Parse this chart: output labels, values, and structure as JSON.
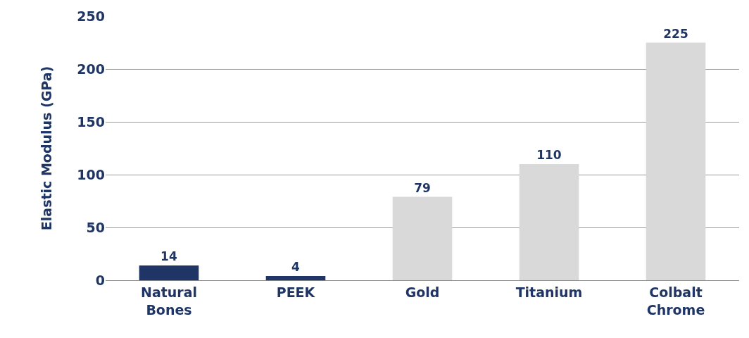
{
  "chart_data": {
    "type": "bar",
    "ylabel": "Elastic Modulus (GPa)",
    "categories": [
      "Natural Bones",
      "PEEK",
      "Gold",
      "Titanium",
      "Colbalt Chrome"
    ],
    "values": [
      14,
      4,
      79,
      110,
      225
    ],
    "colors": [
      "#1f3566",
      "#1f3566",
      "#d9d9d9",
      "#d9d9d9",
      "#d9d9d9"
    ],
    "ylim": [
      0,
      250
    ],
    "yticks": [
      0,
      50,
      100,
      150,
      200,
      250
    ],
    "grid": "y",
    "data_labels": true
  }
}
